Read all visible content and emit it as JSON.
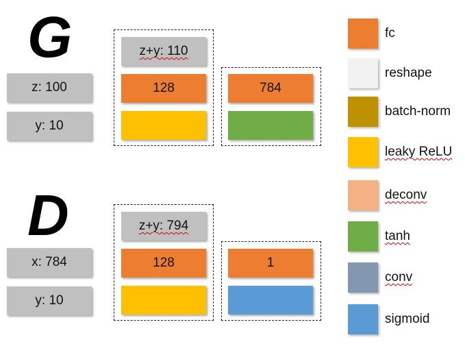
{
  "generator": {
    "title": "G",
    "inputs": [
      "z: 100",
      "y: 10"
    ],
    "layer1": {
      "concat": "z+y: 110",
      "fc": "128"
    },
    "layer2": {
      "fc": "784"
    }
  },
  "discriminator": {
    "title": "D",
    "inputs": [
      "x: 784",
      "y: 10"
    ],
    "layer1": {
      "concat": "z+y: 794",
      "fc": "128"
    },
    "layer2": {
      "fc": "1"
    }
  },
  "legend": [
    {
      "label": "fc",
      "color": "#ed7d31"
    },
    {
      "label": "reshape",
      "color": "#f2f2f2"
    },
    {
      "label": "batch-norm",
      "color": "#bf9000"
    },
    {
      "label": "leaky ReLU",
      "color": "#ffc000"
    },
    {
      "label": "deconv",
      "color": "#f4b183"
    },
    {
      "label": "tanh",
      "color": "#70ad47"
    },
    {
      "label": "conv",
      "color": "#8497b0"
    },
    {
      "label": "sigmoid",
      "color": "#5b9bd5"
    }
  ],
  "colors": {
    "input_gray": "#c0c0c0",
    "fc": "#ed7d31",
    "leaky_relu": "#ffc000",
    "tanh": "#70ad47",
    "sigmoid": "#5b9bd5"
  }
}
